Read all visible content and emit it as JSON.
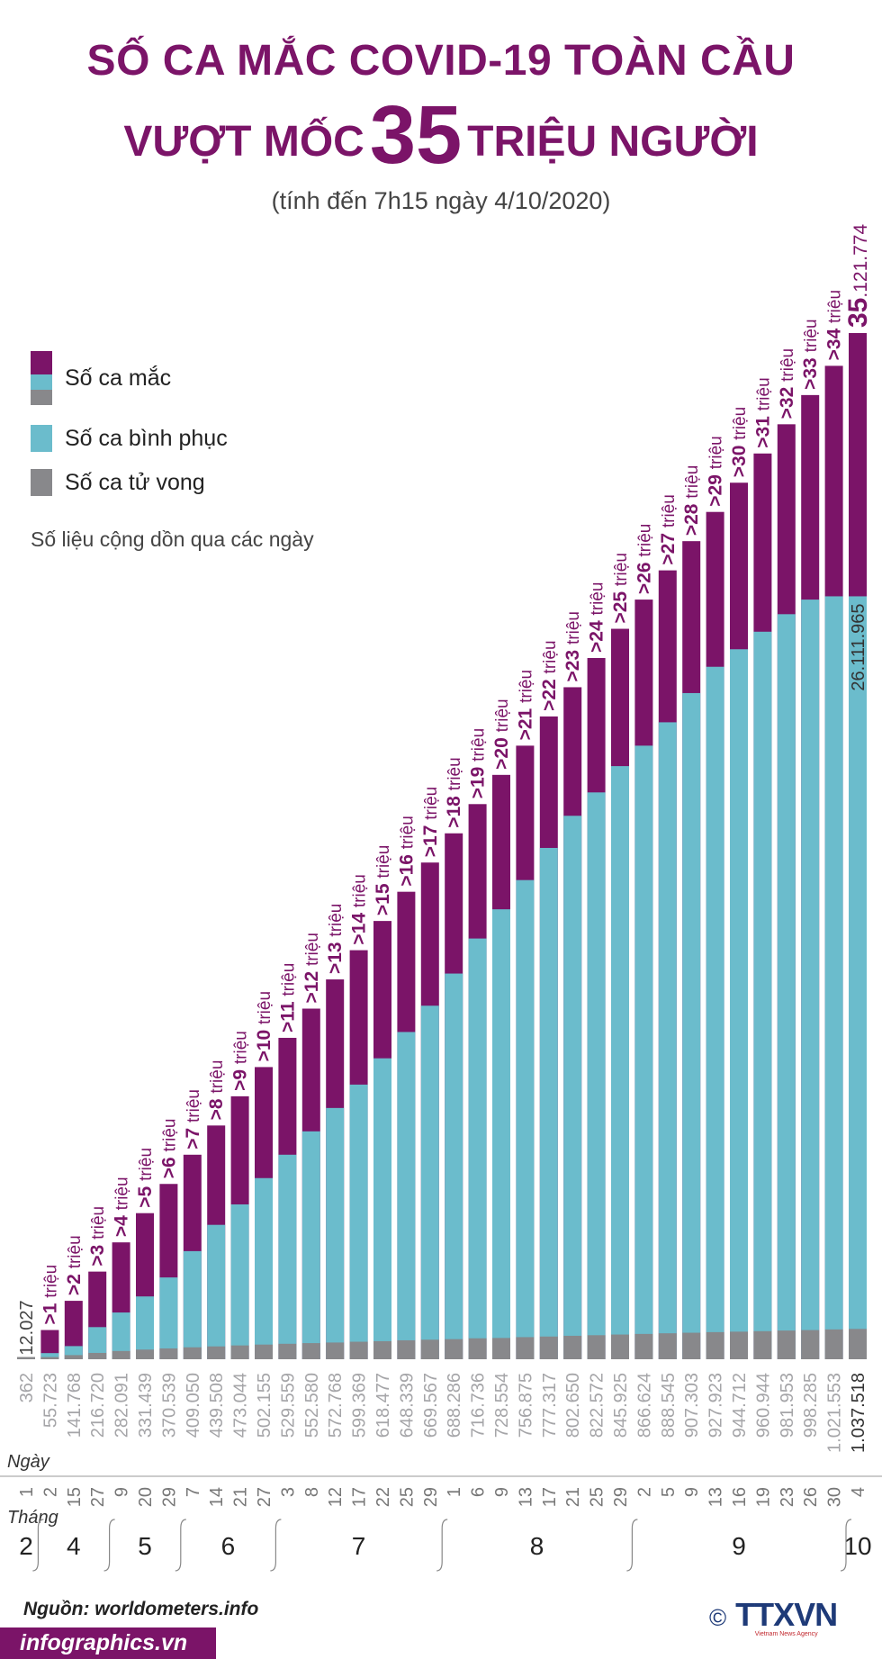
{
  "header": {
    "title_line1": "SỐ CA MẮC COVID-19 TOÀN CẦU",
    "title_line2_pre": "VƯỢT MỐC",
    "title_line2_num": "35",
    "title_line2_post": "TRIỆU NGƯỜI",
    "subtitle": "(tính đến 7h15 ngày 4/10/2020)"
  },
  "legend": {
    "cases": "Số ca mắc",
    "recovered": "Số ca bình phục",
    "deaths": "Số ca tử vong",
    "note": "Số liệu cộng dồn qua các ngày"
  },
  "colors": {
    "cases": "#7b1468",
    "recovered": "#6bbccc",
    "deaths": "#88888b",
    "title": "#7b1468",
    "deaths_text": "#a5a5a8"
  },
  "chart_data": {
    "type": "bar",
    "stacked": true,
    "title": "Số ca mắc COVID-19 toàn cầu vượt mốc 35 triệu người",
    "unit": "người",
    "row_labels": {
      "day": "Ngày",
      "month": "Tháng"
    },
    "days": [
      "1",
      "2",
      "15",
      "27",
      "9",
      "20",
      "29",
      "7",
      "14",
      "21",
      "27",
      "3",
      "8",
      "12",
      "17",
      "22",
      "25",
      "29",
      "1",
      "6",
      "9",
      "13",
      "17",
      "21",
      "25",
      "29",
      "2",
      "5",
      "9",
      "13",
      "16",
      "19",
      "23",
      "26",
      "30",
      "4"
    ],
    "month_groups": [
      {
        "label": "2",
        "count": 1
      },
      {
        "label": "4",
        "count": 3
      },
      {
        "label": "5",
        "count": 3
      },
      {
        "label": "6",
        "count": 4
      },
      {
        "label": "7",
        "count": 7
      },
      {
        "label": "8",
        "count": 8
      },
      {
        "label": "9",
        "count": 9
      },
      {
        "label": "10",
        "count": 1
      }
    ],
    "milestones": [
      ">1 triệu",
      ">2 triệu",
      ">3 triệu",
      ">4 triệu",
      ">5 triệu",
      ">6 triệu",
      ">7 triệu",
      ">8 triệu",
      ">9 triệu",
      ">10 triệu",
      ">11 triệu",
      ">12 triệu",
      ">13 triệu",
      ">14 triệu",
      ">15 triệu",
      ">16 triệu",
      ">17 triệu",
      ">18 triệu",
      ">19 triệu",
      ">20 triệu",
      ">21 triệu",
      ">22 triệu",
      ">23 triệu",
      ">24 triệu",
      ">25 triệu",
      ">26 triệu",
      ">27 triệu",
      ">28 triệu",
      ">29 triệu",
      ">30 triệu",
      ">31 triệu",
      ">32 triệu",
      ">33 triệu",
      ">34 triệu"
    ],
    "series": [
      {
        "name": "Số ca mắc",
        "values": [
          12027,
          1000000,
          2000000,
          3000000,
          4000000,
          5000000,
          6000000,
          7000000,
          8000000,
          9000000,
          10000000,
          11000000,
          12000000,
          13000000,
          14000000,
          15000000,
          16000000,
          17000000,
          18000000,
          19000000,
          20000000,
          21000000,
          22000000,
          23000000,
          24000000,
          25000000,
          26000000,
          27000000,
          28000000,
          29000000,
          30000000,
          31000000,
          32000000,
          33000000,
          34000000,
          35121774
        ]
      },
      {
        "name": "Số ca bình phục",
        "values": [
          300,
          210000,
          450000,
          1100000,
          1600000,
          2150000,
          2800000,
          3700000,
          4600000,
          5300000,
          6200000,
          7000000,
          7800000,
          8600000,
          9400000,
          10300000,
          11200000,
          12100000,
          13200000,
          14400000,
          15400000,
          16400000,
          17500000,
          18600000,
          19400000,
          20300000,
          21000000,
          21800000,
          22800000,
          23700000,
          24300000,
          24900000,
          25500000,
          26000000,
          26111965,
          26111965
        ]
      },
      {
        "name": "Số ca tử vong",
        "values": [
          362,
          55723,
          141768,
          216720,
          282091,
          331439,
          370539,
          409050,
          439508,
          473044,
          502155,
          529559,
          552580,
          572768,
          599369,
          618477,
          648339,
          669567,
          688286,
          716736,
          728554,
          756875,
          777317,
          802650,
          822572,
          845925,
          866624,
          888545,
          907303,
          927923,
          944712,
          960944,
          981953,
          998285,
          1021553,
          1037518
        ]
      }
    ],
    "death_labels": [
      "362",
      "55.723",
      "141.768",
      "216.720",
      "282.091",
      "331.439",
      "370.539",
      "409.050",
      "439.508",
      "473.044",
      "502.155",
      "529.559",
      "552.580",
      "572.768",
      "599.369",
      "618.477",
      "648.339",
      "669.567",
      "688.286",
      "716.736",
      "728.554",
      "756.875",
      "777.317",
      "802.650",
      "822.572",
      "845.925",
      "866.624",
      "888.545",
      "907.303",
      "927.923",
      "944.712",
      "960.944",
      "981.953",
      "998.285",
      "1.021.553",
      "1.037.518"
    ],
    "first_label": "12.027",
    "last_total_label": {
      "big": "35",
      "rest": ".121.774"
    },
    "last_recovered_label": "26.111.965"
  },
  "footer": {
    "source": "Nguồn: worldometers.info",
    "site": "infographics.vn",
    "copyright": "©",
    "logo": "TTXVN",
    "logo_sub": "Vietnam News Agency"
  }
}
